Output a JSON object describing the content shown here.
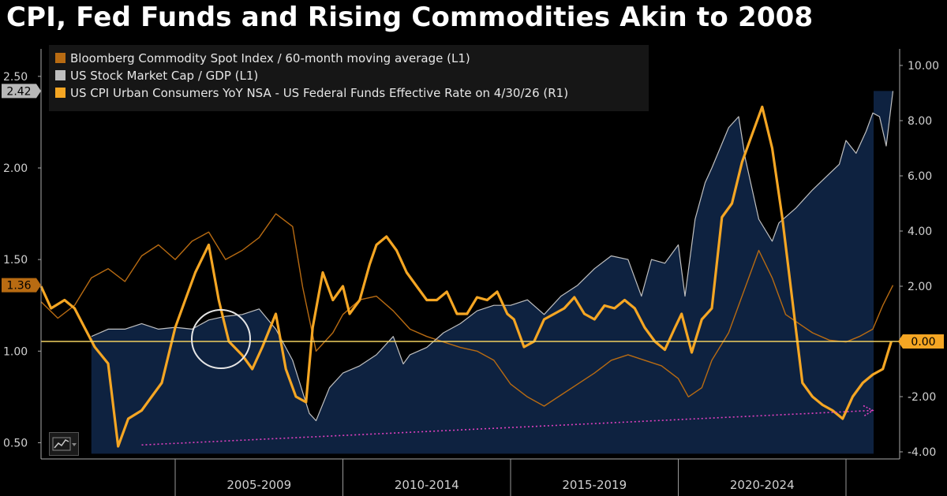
{
  "title": "CPI, Fed Funds and Rising Commodities Akin to 2008",
  "legend": [
    {
      "label": "Bloomberg Commodity Spot Index / 60-month moving average (L1)",
      "color": "#b86b12"
    },
    {
      "label": "US Stock Market Cap / GDP  (L1)",
      "color": "#c0c0c0"
    },
    {
      "label": "US CPI Urban Consumers YoY NSA - US Federal Funds Effective Rate  on 4/30/26 (R1)",
      "color": "#f5a623"
    }
  ],
  "colors": {
    "background": "#000000",
    "plot_area_fill": "#0e2240",
    "commodity_line": "#b86b12",
    "market_cap_line": "#c0c0c0",
    "cpi_ff_line": "#f5a623",
    "zero_line": "#f0d060",
    "trend_arrow": "#e040c0"
  },
  "chart_data": {
    "type": "line",
    "x_range": [
      2001.0,
      2026.6
    ],
    "x_labels": [
      "2005-2009",
      "2010-2014",
      "2015-2019",
      "2020-2024"
    ],
    "left_axis": {
      "ticks": [
        "0.50",
        "1.00",
        "1.50",
        "2.00",
        "2.50"
      ],
      "range": [
        0.42,
        2.65
      ]
    },
    "right_axis": {
      "ticks": [
        "-4.00",
        "-2.00",
        "0.00",
        "2.00",
        "4.00",
        "6.00",
        "8.00",
        "10.00"
      ],
      "range": [
        -4.2,
        10.6
      ]
    },
    "last_value_labels": {
      "market_cap": "2.42",
      "commodity": "1.36",
      "cpi_ff": "0.00"
    },
    "reference_line": {
      "axis": "right",
      "value": 0.0
    },
    "series": [
      {
        "name": "Bloomberg Commodity Spot Index / 60-month moving average (L1)",
        "axis": "left",
        "x": [
          2001.0,
          2001.5,
          2002.0,
          2002.5,
          2003.0,
          2003.5,
          2004.0,
          2004.5,
          2005.0,
          2005.5,
          2006.0,
          2006.5,
          2007.0,
          2007.5,
          2008.0,
          2008.5,
          2008.8,
          2009.2,
          2009.7,
          2010.0,
          2010.5,
          2011.0,
          2011.5,
          2012.0,
          2012.5,
          2013.0,
          2013.5,
          2014.0,
          2014.5,
          2015.0,
          2015.5,
          2016.0,
          2016.5,
          2017.0,
          2017.5,
          2018.0,
          2018.5,
          2019.0,
          2019.5,
          2020.0,
          2020.3,
          2020.7,
          2021.0,
          2021.5,
          2022.0,
          2022.4,
          2022.8,
          2023.2,
          2023.6,
          2024.0,
          2024.5,
          2025.0,
          2025.4,
          2025.8,
          2026.1,
          2026.4
        ],
        "y": [
          1.27,
          1.18,
          1.25,
          1.4,
          1.45,
          1.38,
          1.52,
          1.58,
          1.5,
          1.6,
          1.65,
          1.5,
          1.55,
          1.62,
          1.75,
          1.68,
          1.35,
          1.0,
          1.1,
          1.2,
          1.28,
          1.3,
          1.22,
          1.12,
          1.08,
          1.05,
          1.02,
          1.0,
          0.95,
          0.82,
          0.75,
          0.7,
          0.76,
          0.82,
          0.88,
          0.95,
          0.98,
          0.95,
          0.92,
          0.85,
          0.75,
          0.8,
          0.95,
          1.1,
          1.35,
          1.55,
          1.4,
          1.2,
          1.15,
          1.1,
          1.06,
          1.05,
          1.08,
          1.12,
          1.25,
          1.36
        ]
      },
      {
        "name": "US Stock Market Cap / GDP  (L1)",
        "axis": "left",
        "x": [
          2002.5,
          2003.0,
          2003.5,
          2004.0,
          2004.5,
          2005.0,
          2005.5,
          2006.0,
          2006.5,
          2007.0,
          2007.5,
          2008.0,
          2008.5,
          2009.0,
          2009.2,
          2009.6,
          2010.0,
          2010.5,
          2011.0,
          2011.5,
          2011.8,
          2012.0,
          2012.5,
          2013.0,
          2013.5,
          2014.0,
          2014.5,
          2015.0,
          2015.5,
          2016.0,
          2016.5,
          2017.0,
          2017.5,
          2018.0,
          2018.5,
          2018.9,
          2019.2,
          2019.6,
          2020.0,
          2020.2,
          2020.5,
          2020.8,
          2021.0,
          2021.5,
          2021.8,
          2022.0,
          2022.4,
          2022.8,
          2023.0,
          2023.5,
          2024.0,
          2024.4,
          2024.8,
          2025.0,
          2025.3,
          2025.6,
          2025.8,
          2026.0,
          2026.2,
          2026.4
        ],
        "y": [
          1.08,
          1.12,
          1.12,
          1.15,
          1.12,
          1.13,
          1.12,
          1.17,
          1.19,
          1.2,
          1.23,
          1.12,
          0.95,
          0.66,
          0.62,
          0.8,
          0.88,
          0.92,
          0.98,
          1.08,
          0.93,
          0.98,
          1.02,
          1.1,
          1.15,
          1.22,
          1.25,
          1.25,
          1.28,
          1.2,
          1.3,
          1.36,
          1.45,
          1.52,
          1.5,
          1.3,
          1.5,
          1.48,
          1.58,
          1.3,
          1.72,
          1.92,
          2.0,
          2.22,
          2.28,
          2.05,
          1.72,
          1.6,
          1.7,
          1.78,
          1.88,
          1.95,
          2.02,
          2.15,
          2.08,
          2.2,
          2.3,
          2.28,
          2.12,
          2.42
        ]
      },
      {
        "name": "US CPI Urban Consumers YoY NSA - US Federal Funds Effective Rate  on 4/30/26 (R1)",
        "axis": "right",
        "x": [
          2001.0,
          2001.3,
          2001.7,
          2002.0,
          2002.3,
          2002.6,
          2003.0,
          2003.3,
          2003.6,
          2004.0,
          2004.3,
          2004.6,
          2005.0,
          2005.3,
          2005.6,
          2006.0,
          2006.3,
          2006.6,
          2007.0,
          2007.3,
          2007.6,
          2008.0,
          2008.3,
          2008.6,
          2008.9,
          2009.1,
          2009.4,
          2009.7,
          2010.0,
          2010.2,
          2010.5,
          2010.8,
          2011.0,
          2011.3,
          2011.6,
          2011.9,
          2012.2,
          2012.5,
          2012.8,
          2013.1,
          2013.4,
          2013.7,
          2014.0,
          2014.3,
          2014.6,
          2014.9,
          2015.1,
          2015.4,
          2015.7,
          2016.0,
          2016.3,
          2016.6,
          2016.9,
          2017.2,
          2017.5,
          2017.8,
          2018.1,
          2018.4,
          2018.7,
          2019.0,
          2019.3,
          2019.6,
          2019.9,
          2020.1,
          2020.4,
          2020.7,
          2021.0,
          2021.3,
          2021.6,
          2021.9,
          2022.2,
          2022.5,
          2022.8,
          2023.1,
          2023.4,
          2023.7,
          2024.0,
          2024.3,
          2024.6,
          2024.9,
          2025.2,
          2025.5,
          2025.8,
          2026.1,
          2026.35
        ],
        "y": [
          2.0,
          1.2,
          1.5,
          1.2,
          0.5,
          -0.2,
          -0.8,
          -3.8,
          -2.8,
          -2.5,
          -2.0,
          -1.5,
          0.5,
          1.5,
          2.5,
          3.5,
          1.5,
          0.0,
          -0.5,
          -1.0,
          -0.2,
          1.0,
          -1.0,
          -2.0,
          -2.2,
          0.5,
          2.5,
          1.5,
          2.0,
          1.0,
          1.5,
          2.8,
          3.5,
          3.8,
          3.3,
          2.5,
          2.0,
          1.5,
          1.5,
          1.8,
          1.0,
          1.0,
          1.6,
          1.5,
          1.8,
          1.0,
          0.8,
          -0.2,
          0.0,
          0.8,
          1.0,
          1.2,
          1.6,
          1.0,
          0.8,
          1.3,
          1.2,
          1.5,
          1.2,
          0.5,
          0.0,
          -0.3,
          0.5,
          1.0,
          -0.4,
          0.8,
          1.2,
          4.5,
          5.0,
          6.5,
          7.5,
          8.5,
          7.0,
          4.5,
          1.5,
          -1.5,
          -2.0,
          -2.3,
          -2.5,
          -2.8,
          -2.0,
          -1.5,
          -1.2,
          -1.0,
          0.0
        ]
      }
    ]
  }
}
